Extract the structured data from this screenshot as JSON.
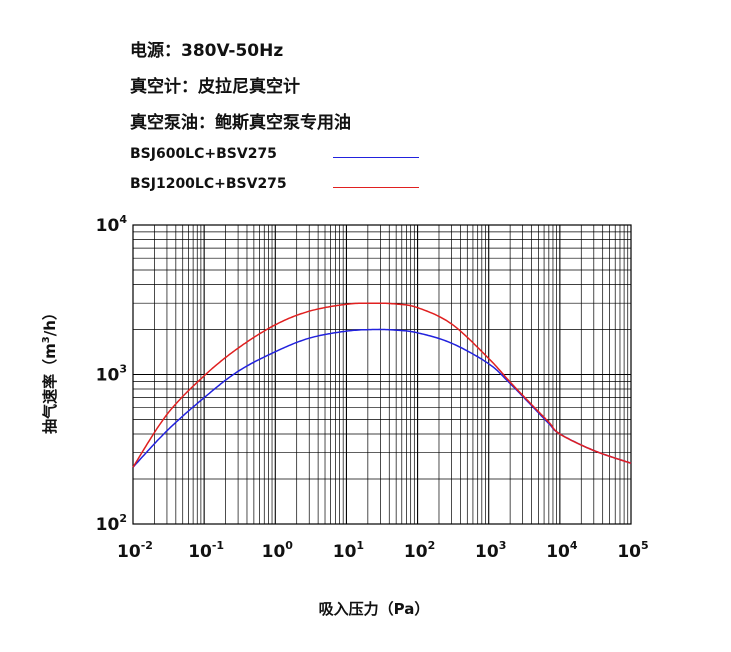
{
  "header": {
    "power": "电源：380V-50Hz",
    "gauge": "真空计：皮拉尼真空计",
    "oil": "真空泵油：鲍斯真空泵专用油"
  },
  "chart_data": {
    "type": "line",
    "xscale": "log",
    "yscale": "log",
    "xlim": [
      0.01,
      100000
    ],
    "ylim": [
      100,
      10000
    ],
    "xlabel": "吸入压力（Pa）",
    "ylabel_main": "抽气速率（m",
    "ylabel_sup": "3",
    "ylabel_end": "/h）",
    "grid": true,
    "x_ticks": [
      {
        "base": "10",
        "exp": "-2"
      },
      {
        "base": "10",
        "exp": "-1"
      },
      {
        "base": "10",
        "exp": "0"
      },
      {
        "base": "10",
        "exp": "1"
      },
      {
        "base": "10",
        "exp": "2"
      },
      {
        "base": "10",
        "exp": "3"
      },
      {
        "base": "10",
        "exp": "4"
      },
      {
        "base": "10",
        "exp": "5"
      }
    ],
    "y_ticks": [
      {
        "base": "10",
        "exp": "2"
      },
      {
        "base": "10",
        "exp": "3"
      },
      {
        "base": "10",
        "exp": "4"
      }
    ],
    "series": [
      {
        "name": "BSJ600LC+BSV275",
        "color": "#2222dd",
        "x": [
          0.01,
          0.03,
          0.1,
          0.3,
          1,
          3,
          10,
          25,
          50,
          100,
          300,
          1000,
          2000,
          4000,
          7000,
          10000,
          30000,
          100000
        ],
        "y": [
          240,
          420,
          700,
          1050,
          1420,
          1750,
          1950,
          2000,
          1980,
          1900,
          1620,
          1180,
          870,
          620,
          470,
          400,
          310,
          255
        ]
      },
      {
        "name": "BSJ1200LC+BSV275",
        "color": "#e02020",
        "x": [
          0.01,
          0.03,
          0.1,
          0.3,
          1,
          3,
          10,
          25,
          50,
          100,
          300,
          1000,
          2000,
          4000,
          7000,
          10000,
          30000,
          100000
        ],
        "y": [
          240,
          540,
          980,
          1500,
          2150,
          2650,
          2950,
          3000,
          2960,
          2800,
          2180,
          1280,
          890,
          630,
          480,
          400,
          310,
          255
        ]
      }
    ]
  }
}
